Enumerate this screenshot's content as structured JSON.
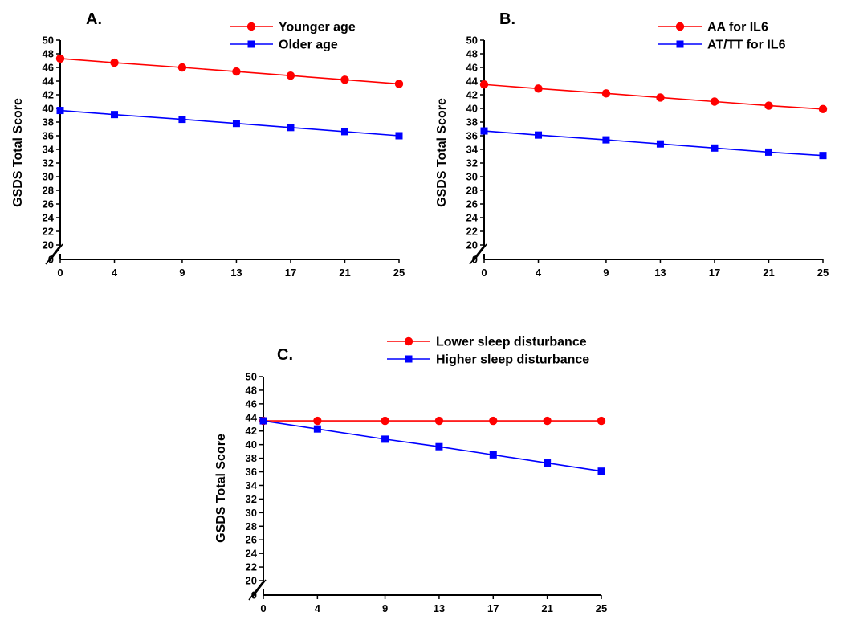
{
  "chart_data": [
    {
      "type": "line",
      "panel_label": "A.",
      "ylabel": "GSDS Total Score",
      "xlabel": "",
      "x": [
        0,
        4,
        9,
        13,
        17,
        21,
        25
      ],
      "ylim": [
        20,
        50
      ],
      "y_ticks": [
        20,
        22,
        24,
        26,
        28,
        30,
        32,
        34,
        36,
        38,
        40,
        42,
        44,
        46,
        48,
        50
      ],
      "y_zero_label": "0",
      "axis_break": true,
      "legend_position": "top-right",
      "series": [
        {
          "name": "Younger age",
          "color": "#ff0000",
          "marker": "circle",
          "values": [
            47.3,
            46.7,
            46.0,
            45.4,
            44.8,
            44.2,
            43.6
          ]
        },
        {
          "name": "Older age",
          "color": "#0000ff",
          "marker": "square",
          "values": [
            39.7,
            39.1,
            38.4,
            37.8,
            37.2,
            36.6,
            36.0
          ]
        }
      ]
    },
    {
      "type": "line",
      "panel_label": "B.",
      "ylabel": "GSDS Total Score",
      "xlabel": "",
      "x": [
        0,
        4,
        9,
        13,
        17,
        21,
        25
      ],
      "ylim": [
        20,
        50
      ],
      "y_ticks": [
        20,
        22,
        24,
        26,
        28,
        30,
        32,
        34,
        36,
        38,
        40,
        42,
        44,
        46,
        48,
        50
      ],
      "y_zero_label": "0",
      "axis_break": true,
      "legend_position": "top-right",
      "series": [
        {
          "name": "AA for IL6",
          "color": "#ff0000",
          "marker": "circle",
          "values": [
            43.5,
            42.9,
            42.2,
            41.6,
            41.0,
            40.4,
            39.9
          ]
        },
        {
          "name": "AT/TT for IL6",
          "color": "#0000ff",
          "marker": "square",
          "values": [
            36.7,
            36.1,
            35.4,
            34.8,
            34.2,
            33.6,
            33.1
          ]
        }
      ]
    },
    {
      "type": "line",
      "panel_label": "C.",
      "ylabel": "GSDS Total Score",
      "xlabel": "",
      "x": [
        0,
        4,
        9,
        13,
        17,
        21,
        25
      ],
      "ylim": [
        20,
        50
      ],
      "y_ticks": [
        20,
        22,
        24,
        26,
        28,
        30,
        32,
        34,
        36,
        38,
        40,
        42,
        44,
        46,
        48,
        50
      ],
      "y_zero_label": "0",
      "axis_break": true,
      "legend_position": "top-right",
      "series": [
        {
          "name": "Lower sleep disturbance",
          "color": "#ff0000",
          "marker": "circle",
          "values": [
            43.5,
            43.5,
            43.5,
            43.5,
            43.5,
            43.5,
            43.5
          ]
        },
        {
          "name": "Higher sleep disturbance",
          "color": "#0000ff",
          "marker": "square",
          "values": [
            43.5,
            42.3,
            40.8,
            39.7,
            38.5,
            37.3,
            36.1
          ]
        }
      ]
    }
  ]
}
